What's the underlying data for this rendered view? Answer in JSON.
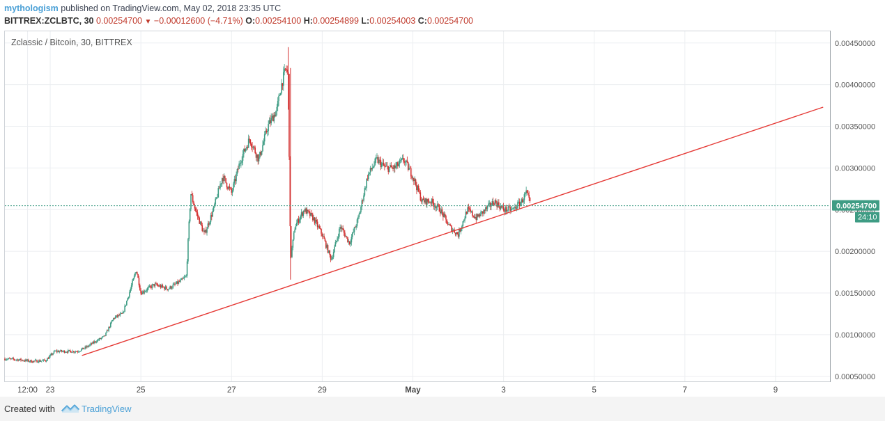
{
  "header": {
    "author": "mythologism",
    "published": "published on TradingView.com, May 02, 2018 23:35 UTC"
  },
  "ohlc": {
    "symbol": "BITTREX:ZCLBTC, 30",
    "last": "0.00254700",
    "change": "−0.00012600 (−4.71%)",
    "o_label": "O:",
    "o": "0.00254100",
    "h_label": "H:",
    "h": "0.00254899",
    "l_label": "L:",
    "l": "0.00254003",
    "c_label": "C:",
    "c": "0.00254700"
  },
  "chart_data": {
    "type": "candlestick",
    "title": "Zclassic / Bitcoin, 30, BITTREX",
    "x_tick_labels": [
      "12:00",
      "23",
      "25",
      "27",
      "29",
      "May",
      "3",
      "5",
      "7",
      "9"
    ],
    "x_tick_days": [
      0.5,
      1,
      3,
      5,
      7,
      9,
      11,
      13,
      15,
      17
    ],
    "x_tick_note": "days since Apr 22, 2018 00:00",
    "y_tick_labels": [
      "0.00050000",
      "0.00100000",
      "0.00150000",
      "0.00200000",
      "0.00250000",
      "0.00300000",
      "0.00350000",
      "0.00400000",
      "0.00450000"
    ],
    "y_ticks": [
      0.0005,
      0.001,
      0.0015,
      0.002,
      0.0025,
      0.003,
      0.0035,
      0.004,
      0.0045
    ],
    "xlim_days": [
      0.0,
      18.2
    ],
    "ylim": [
      0.00044,
      0.00464
    ],
    "last_price": 0.002547,
    "last_price_label": "0.00254700",
    "countdown_label": "24:10",
    "trendline": {
      "color": "#e53935",
      "points": [
        [
          1.7,
          0.00075
        ],
        [
          18.05,
          0.00373
        ]
      ]
    },
    "price_path": [
      [
        0.0,
        0.00071
      ],
      [
        0.3,
        0.0007
      ],
      [
        0.6,
        0.00068
      ],
      [
        0.9,
        0.00069
      ],
      [
        1.1,
        0.0008
      ],
      [
        1.4,
        0.0008
      ],
      [
        1.6,
        0.0008
      ],
      [
        1.8,
        0.00085
      ],
      [
        2.0,
        0.00092
      ],
      [
        2.2,
        0.00098
      ],
      [
        2.4,
        0.0012
      ],
      [
        2.6,
        0.00125
      ],
      [
        2.8,
        0.0016
      ],
      [
        2.9,
        0.00178
      ],
      [
        3.0,
        0.0015
      ],
      [
        3.3,
        0.0016
      ],
      [
        3.6,
        0.00155
      ],
      [
        3.9,
        0.00165
      ],
      [
        4.0,
        0.0017
      ],
      [
        4.1,
        0.0027
      ],
      [
        4.2,
        0.0025
      ],
      [
        4.4,
        0.0022
      ],
      [
        4.6,
        0.0025
      ],
      [
        4.8,
        0.0029
      ],
      [
        5.0,
        0.0027
      ],
      [
        5.2,
        0.0031
      ],
      [
        5.4,
        0.00335
      ],
      [
        5.6,
        0.0031
      ],
      [
        5.8,
        0.0035
      ],
      [
        6.0,
        0.0037
      ],
      [
        6.1,
        0.004
      ],
      [
        6.2,
        0.0042
      ],
      [
        6.25,
        0.0041
      ],
      [
        6.3,
        0.0019
      ],
      [
        6.4,
        0.0023
      ],
      [
        6.6,
        0.0025
      ],
      [
        6.8,
        0.0024
      ],
      [
        7.0,
        0.0022
      ],
      [
        7.2,
        0.0019
      ],
      [
        7.4,
        0.0023
      ],
      [
        7.6,
        0.0021
      ],
      [
        7.8,
        0.0024
      ],
      [
        8.0,
        0.0029
      ],
      [
        8.2,
        0.0031
      ],
      [
        8.4,
        0.003
      ],
      [
        8.6,
        0.003
      ],
      [
        8.8,
        0.0031
      ],
      [
        9.0,
        0.0029
      ],
      [
        9.2,
        0.0026
      ],
      [
        9.4,
        0.0026
      ],
      [
        9.6,
        0.0025
      ],
      [
        9.8,
        0.0023
      ],
      [
        10.0,
        0.0022
      ],
      [
        10.2,
        0.0025
      ],
      [
        10.4,
        0.0024
      ],
      [
        10.6,
        0.0025
      ],
      [
        10.8,
        0.0026
      ],
      [
        11.0,
        0.0025
      ],
      [
        11.2,
        0.0025
      ],
      [
        11.4,
        0.0026
      ],
      [
        11.5,
        0.0027
      ],
      [
        11.6,
        0.00255
      ]
    ],
    "colors": {
      "up": "#3e9c84",
      "down": "#d32f2f",
      "last_line": "#3e9c84"
    }
  },
  "footer": {
    "created_with": "Created with",
    "brand": "TradingView",
    "brand_icon": "tradingview-logo-icon"
  }
}
